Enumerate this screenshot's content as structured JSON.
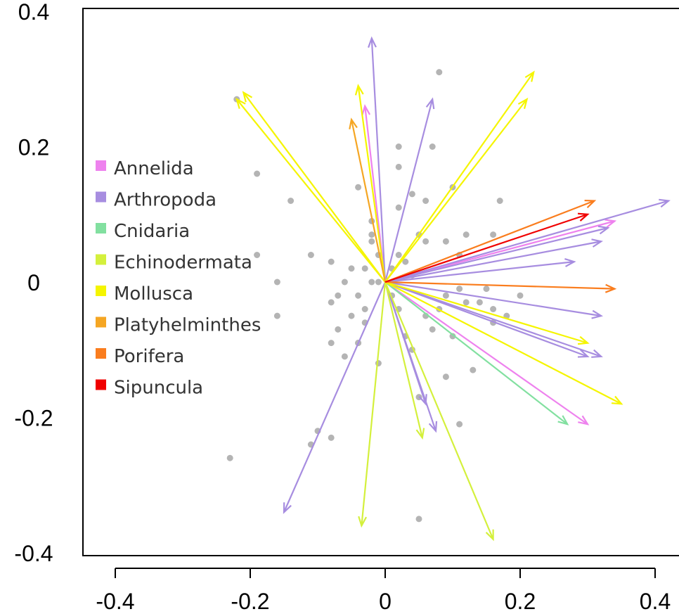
{
  "chart_data": {
    "type": "scatter",
    "title": "",
    "xlabel": "",
    "ylabel": "",
    "xlim": [
      -0.42,
      0.42
    ],
    "ylim": [
      -0.4,
      0.4
    ],
    "x_ticks": [
      {
        "value": -0.4,
        "label": "-0.4"
      },
      {
        "value": -0.2,
        "label": "-0.2"
      },
      {
        "value": 0,
        "label": "0"
      },
      {
        "value": 0.2,
        "label": "0.2"
      },
      {
        "value": 0.4,
        "label": "0.4"
      }
    ],
    "y_ticks": [
      {
        "value": 0.4,
        "label": "0.4"
      },
      {
        "value": 0.2,
        "label": "0.2"
      },
      {
        "value": 0,
        "label": "0"
      },
      {
        "value": -0.2,
        "label": "-0.2"
      },
      {
        "value": -0.4,
        "label": "-0.4"
      }
    ],
    "grid": false,
    "legend_position": "left",
    "point_color": "#b4b4b4",
    "legend": [
      {
        "name": "Annelida",
        "color": "#ee82ee"
      },
      {
        "name": "Arthropoda",
        "color": "#a78de0"
      },
      {
        "name": "Cnidaria",
        "color": "#82e0a0"
      },
      {
        "name": "Echinodermata",
        "color": "#d4f03c"
      },
      {
        "name": "Mollusca",
        "color": "#f5f500"
      },
      {
        "name": "Platyhelminthes",
        "color": "#f5a623"
      },
      {
        "name": "Porifera",
        "color": "#fa7d1e"
      },
      {
        "name": "Sipuncula",
        "color": "#f00000"
      }
    ],
    "points": [
      [
        0.08,
        0.31
      ],
      [
        0.07,
        0.2
      ],
      [
        -0.22,
        0.27
      ],
      [
        -0.19,
        0.16
      ],
      [
        -0.14,
        0.12
      ],
      [
        -0.19,
        0.04
      ],
      [
        -0.11,
        0.04
      ],
      [
        -0.16,
        0.0
      ],
      [
        -0.08,
        0.03
      ],
      [
        -0.04,
        0.14
      ],
      [
        -0.02,
        0.09
      ],
      [
        -0.02,
        0.07
      ],
      [
        -0.01,
        0.04
      ],
      [
        -0.02,
        0.06
      ],
      [
        0.01,
        0.02
      ],
      [
        0.02,
        0.2
      ],
      [
        0.02,
        0.17
      ],
      [
        0.02,
        0.11
      ],
      [
        0.04,
        0.13
      ],
      [
        0.06,
        0.12
      ],
      [
        0.1,
        0.14
      ],
      [
        0.05,
        0.07
      ],
      [
        0.06,
        0.06
      ],
      [
        0.09,
        0.06
      ],
      [
        0.11,
        0.04
      ],
      [
        0.12,
        0.07
      ],
      [
        0.16,
        0.07
      ],
      [
        0.17,
        0.12
      ],
      [
        0.02,
        0.04
      ],
      [
        0.03,
        0.03
      ],
      [
        0.04,
        0.01
      ],
      [
        -0.01,
        0.0
      ],
      [
        -0.02,
        0.0
      ],
      [
        -0.03,
        0.02
      ],
      [
        -0.05,
        0.02
      ],
      [
        -0.06,
        0.0
      ],
      [
        -0.07,
        -0.02
      ],
      [
        -0.08,
        -0.03
      ],
      [
        -0.04,
        -0.02
      ],
      [
        -0.03,
        -0.04
      ],
      [
        -0.05,
        -0.05
      ],
      [
        -0.07,
        -0.07
      ],
      [
        -0.03,
        -0.06
      ],
      [
        -0.04,
        -0.09
      ],
      [
        -0.06,
        -0.11
      ],
      [
        -0.08,
        -0.09
      ],
      [
        -0.04,
        -0.09
      ],
      [
        -0.01,
        -0.12
      ],
      [
        0.01,
        -0.02
      ],
      [
        0.02,
        -0.04
      ],
      [
        0.03,
        -0.08
      ],
      [
        0.04,
        -0.1
      ],
      [
        0.06,
        -0.05
      ],
      [
        0.07,
        -0.07
      ],
      [
        0.08,
        -0.04
      ],
      [
        0.09,
        -0.02
      ],
      [
        0.11,
        -0.01
      ],
      [
        0.12,
        -0.03
      ],
      [
        0.14,
        -0.03
      ],
      [
        0.15,
        -0.01
      ],
      [
        0.16,
        -0.04
      ],
      [
        0.16,
        -0.06
      ],
      [
        0.2,
        -0.02
      ],
      [
        0.18,
        -0.05
      ],
      [
        0.1,
        -0.08
      ],
      [
        0.13,
        -0.13
      ],
      [
        0.05,
        -0.17
      ],
      [
        0.09,
        -0.14
      ],
      [
        0.11,
        -0.21
      ],
      [
        -0.1,
        -0.22
      ],
      [
        -0.16,
        -0.05
      ],
      [
        -0.08,
        -0.23
      ],
      [
        -0.11,
        -0.24
      ],
      [
        -0.23,
        -0.26
      ],
      [
        0.05,
        -0.35
      ]
    ],
    "vectors": [
      {
        "group": "Annelida",
        "x": -0.03,
        "y": 0.26
      },
      {
        "group": "Annelida",
        "x": 0.34,
        "y": 0.09
      },
      {
        "group": "Annelida",
        "x": 0.3,
        "y": -0.21
      },
      {
        "group": "Arthropoda",
        "x": -0.02,
        "y": 0.36
      },
      {
        "group": "Arthropoda",
        "x": 0.07,
        "y": 0.27
      },
      {
        "group": "Arthropoda",
        "x": 0.42,
        "y": 0.12
      },
      {
        "group": "Arthropoda",
        "x": 0.33,
        "y": 0.08
      },
      {
        "group": "Arthropoda",
        "x": 0.32,
        "y": 0.06
      },
      {
        "group": "Arthropoda",
        "x": 0.28,
        "y": 0.03
      },
      {
        "group": "Arthropoda",
        "x": 0.32,
        "y": -0.05
      },
      {
        "group": "Arthropoda",
        "x": 0.3,
        "y": -0.11
      },
      {
        "group": "Arthropoda",
        "x": 0.32,
        "y": -0.11
      },
      {
        "group": "Arthropoda",
        "x": 0.06,
        "y": -0.18
      },
      {
        "group": "Arthropoda",
        "x": 0.075,
        "y": -0.22
      },
      {
        "group": "Arthropoda",
        "x": -0.15,
        "y": -0.34
      },
      {
        "group": "Cnidaria",
        "x": 0.27,
        "y": -0.21
      },
      {
        "group": "Echinodermata",
        "x": 0.055,
        "y": -0.23
      },
      {
        "group": "Echinodermata",
        "x": -0.035,
        "y": -0.36
      },
      {
        "group": "Echinodermata",
        "x": 0.16,
        "y": -0.38
      },
      {
        "group": "Mollusca",
        "x": -0.04,
        "y": 0.29
      },
      {
        "group": "Mollusca",
        "x": -0.21,
        "y": 0.28
      },
      {
        "group": "Mollusca",
        "x": -0.22,
        "y": 0.27
      },
      {
        "group": "Mollusca",
        "x": 0.22,
        "y": 0.31
      },
      {
        "group": "Mollusca",
        "x": 0.21,
        "y": 0.27
      },
      {
        "group": "Mollusca",
        "x": 0.3,
        "y": -0.09
      },
      {
        "group": "Mollusca",
        "x": 0.35,
        "y": -0.18
      },
      {
        "group": "Platyhelminthes",
        "x": -0.05,
        "y": 0.24
      },
      {
        "group": "Porifera",
        "x": 0.31,
        "y": 0.12
      },
      {
        "group": "Porifera",
        "x": 0.34,
        "y": -0.01
      },
      {
        "group": "Sipuncula",
        "x": 0.3,
        "y": 0.1
      }
    ]
  }
}
